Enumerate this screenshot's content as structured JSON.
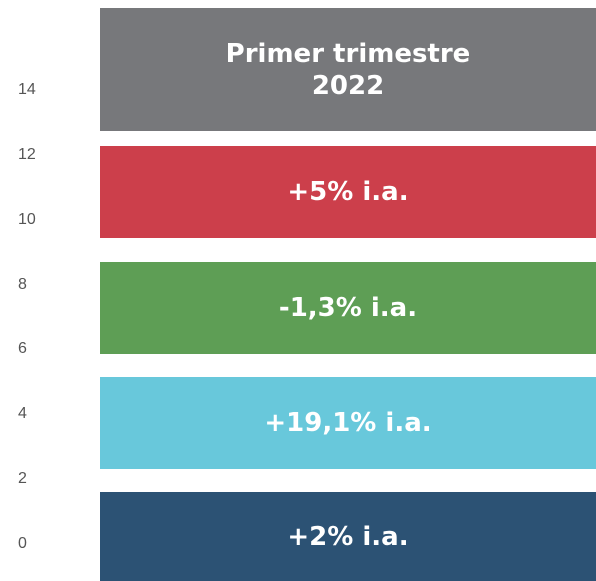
{
  "axis_ticks": [
    0,
    2,
    4,
    6,
    8,
    10,
    12,
    14
  ],
  "boxes": [
    {
      "lines": [
        "Primer trimestre",
        "2022"
      ],
      "color": "#77787b"
    },
    {
      "lines": [
        "+5% i.a."
      ],
      "color": "#cc3f4b"
    },
    {
      "lines": [
        "-1,3% i.a."
      ],
      "color": "#5e9e55"
    },
    {
      "lines": [
        "+19,1% i.a."
      ],
      "color": "#68c8db"
    },
    {
      "lines": [
        "+2% i.a."
      ],
      "color": "#2c5274"
    }
  ]
}
